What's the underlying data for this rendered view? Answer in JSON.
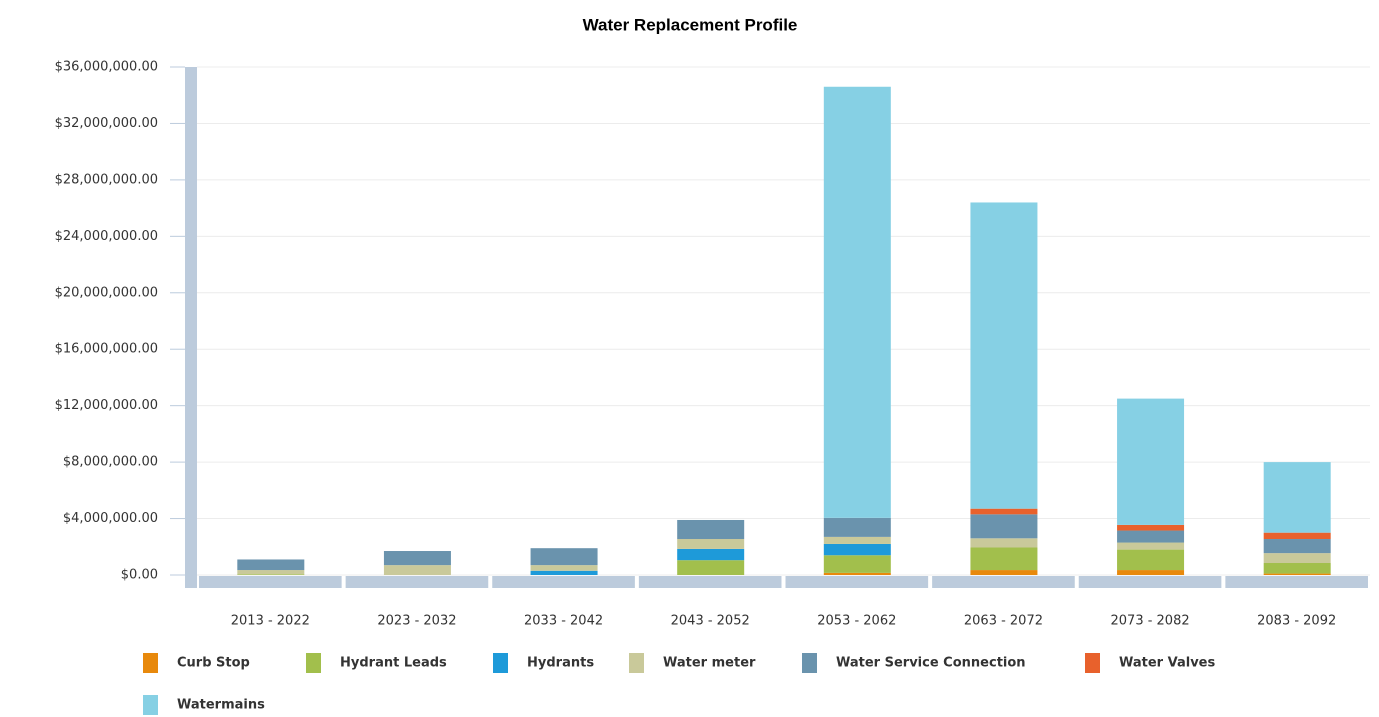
{
  "chart_data": {
    "type": "stacked_bar",
    "title": "Water Replacement Profile",
    "categories": [
      "2013 - 2022",
      "2023 - 2032",
      "2033 - 2042",
      "2043 - 2052",
      "2053 - 2062",
      "2063 - 2072",
      "2073 - 2082",
      "2083 - 2092"
    ],
    "series": [
      {
        "name": "Curb Stop",
        "color": "#e8890c",
        "values": [
          0,
          0,
          0,
          0,
          150000,
          350000,
          350000,
          100000
        ]
      },
      {
        "name": "Hydrant Leads",
        "color": "#a2bf4c",
        "values": [
          50000,
          0,
          0,
          1050000,
          1250000,
          1600000,
          1450000,
          750000
        ]
      },
      {
        "name": "Hydrants",
        "color": "#1e9ad9",
        "values": [
          0,
          0,
          300000,
          800000,
          800000,
          0,
          0,
          0
        ]
      },
      {
        "name": "Water meter",
        "color": "#c9c99a",
        "values": [
          300000,
          700000,
          400000,
          700000,
          500000,
          650000,
          500000,
          700000
        ]
      },
      {
        "name": "Water Service Connection",
        "color": "#6a93ad",
        "values": [
          750000,
          1000000,
          1200000,
          1350000,
          1350000,
          1700000,
          850000,
          1000000
        ]
      },
      {
        "name": "Water Valves",
        "color": "#e8612c",
        "values": [
          0,
          0,
          0,
          0,
          0,
          400000,
          400000,
          450000
        ]
      },
      {
        "name": "Watermains",
        "color": "#86d0e4",
        "values": [
          0,
          0,
          0,
          0,
          30550000,
          21700000,
          8950000,
          5000000
        ]
      }
    ],
    "ylim": [
      0,
      36000000
    ],
    "yticks": [
      {
        "value": 0,
        "label": "$0.00"
      },
      {
        "value": 4000000,
        "label": "$4,000,000.00"
      },
      {
        "value": 8000000,
        "label": "$8,000,000.00"
      },
      {
        "value": 12000000,
        "label": "$12,000,000.00"
      },
      {
        "value": 16000000,
        "label": "$16,000,000.00"
      },
      {
        "value": 20000000,
        "label": "$20,000,000.00"
      },
      {
        "value": 24000000,
        "label": "$24,000,000.00"
      },
      {
        "value": 28000000,
        "label": "$28,000,000.00"
      },
      {
        "value": 32000000,
        "label": "$32,000,000.00"
      },
      {
        "value": 36000000,
        "label": "$36,000,000.00"
      }
    ],
    "grid": true
  }
}
